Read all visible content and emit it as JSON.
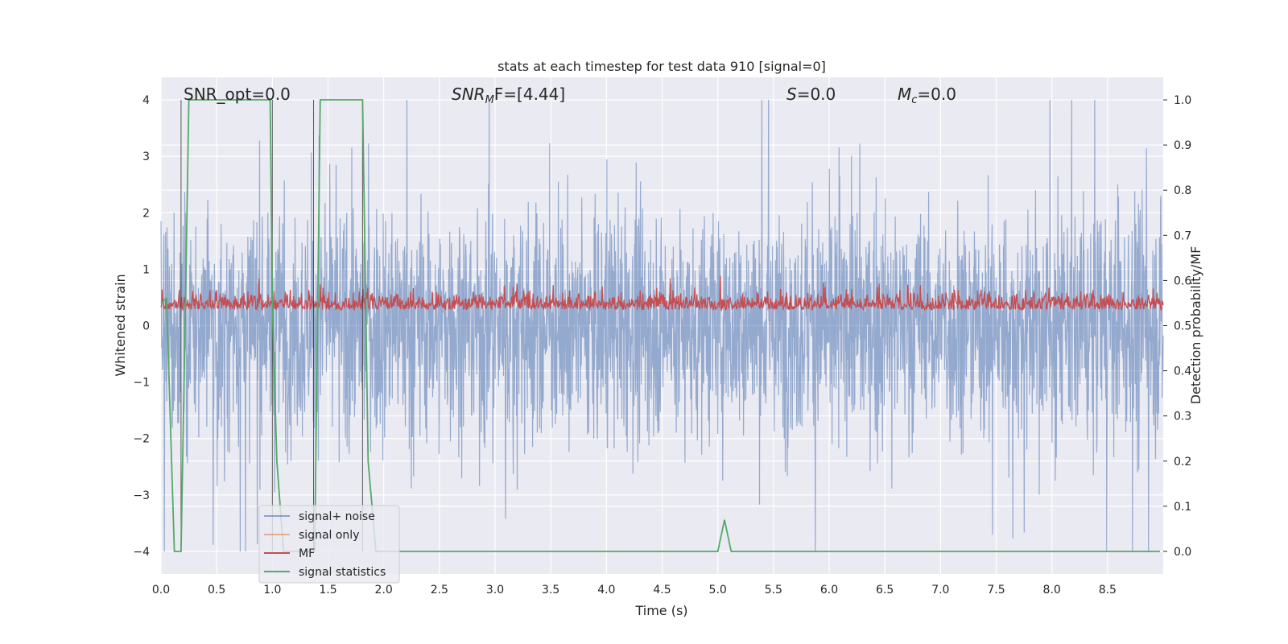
{
  "chart_data": {
    "type": "line",
    "title": "stats at each timestep for test data 910 [signal=0]",
    "xlabel": "Time (s)",
    "ylabel_left": "Whitened strain",
    "ylabel_right": "Detection probability/MF",
    "xlim": [
      0,
      9.0
    ],
    "ylim_left": [
      -4.4,
      4.4
    ],
    "ylim_right": [
      -0.05,
      1.05
    ],
    "x_ticks": [
      0.0,
      0.5,
      1.0,
      1.5,
      2.0,
      2.5,
      3.0,
      3.5,
      4.0,
      4.5,
      5.0,
      5.5,
      6.0,
      6.5,
      7.0,
      7.5,
      8.0,
      8.5
    ],
    "x_tick_labels": [
      "0.0",
      "0.5",
      "1.0",
      "1.5",
      "2.0",
      "2.5",
      "3.0",
      "3.5",
      "4.0",
      "4.5",
      "5.0",
      "5.5",
      "6.0",
      "6.5",
      "7.0",
      "7.5",
      "8.0",
      "8.5"
    ],
    "y_left_ticks": [
      -4,
      -3,
      -2,
      -1,
      0,
      1,
      2,
      3,
      4
    ],
    "y_left_tick_labels": [
      "−4",
      "−3",
      "−2",
      "−1",
      "0",
      "1",
      "2",
      "3",
      "4"
    ],
    "y_right_ticks": [
      0.0,
      0.1,
      0.2,
      0.3,
      0.4,
      0.5,
      0.6,
      0.7,
      0.8,
      0.9,
      1.0
    ],
    "y_right_tick_labels": [
      "0.0",
      "0.1",
      "0.2",
      "0.3",
      "0.4",
      "0.5",
      "0.6",
      "0.7",
      "0.8",
      "0.9",
      "1.0"
    ],
    "grid": true,
    "legend_position": "lower-left",
    "annotations": {
      "snr_opt": "SNR_opt=0.0",
      "snr_mf_base": "SNR",
      "snr_mf_sub": "M",
      "snr_mf_rest": "F=[4.44]",
      "s": "=0.0",
      "s_sym": "S",
      "mc_sym": "M",
      "mc_sub": "c",
      "mc_rest": "=0.0"
    },
    "series": [
      {
        "name": "signal+ noise",
        "color": "#4c72b0",
        "axis": "left",
        "description_values": "dense noise, roughly symmetric about 0, envelope about ±1.6 with spikes to ±4"
      },
      {
        "name": "signal only",
        "color": "#dd8452",
        "axis": "left",
        "values": []
      },
      {
        "name": "MF",
        "color": "#c44e52",
        "axis": "right",
        "description_values": "noisy band between 0.50 and 0.63"
      },
      {
        "name": "signal statistics",
        "color": "#55a868",
        "axis": "right",
        "x": [
          0.0,
          0.05,
          0.12,
          0.18,
          0.22,
          0.25,
          0.98,
          1.0,
          1.04,
          1.1,
          1.38,
          1.43,
          1.81,
          1.86,
          1.93,
          5.0,
          5.06,
          5.12,
          8.97
        ],
        "y": [
          0.55,
          0.56,
          0.0,
          0.0,
          0.55,
          1.0,
          1.0,
          0.55,
          0.2,
          0.0,
          0.0,
          1.0,
          1.0,
          0.2,
          0.0,
          0.0,
          0.07,
          0.0,
          0.0
        ]
      }
    ],
    "vertical_lines_x": [
      0.18,
      1.0,
      1.37,
      1.81
    ]
  }
}
